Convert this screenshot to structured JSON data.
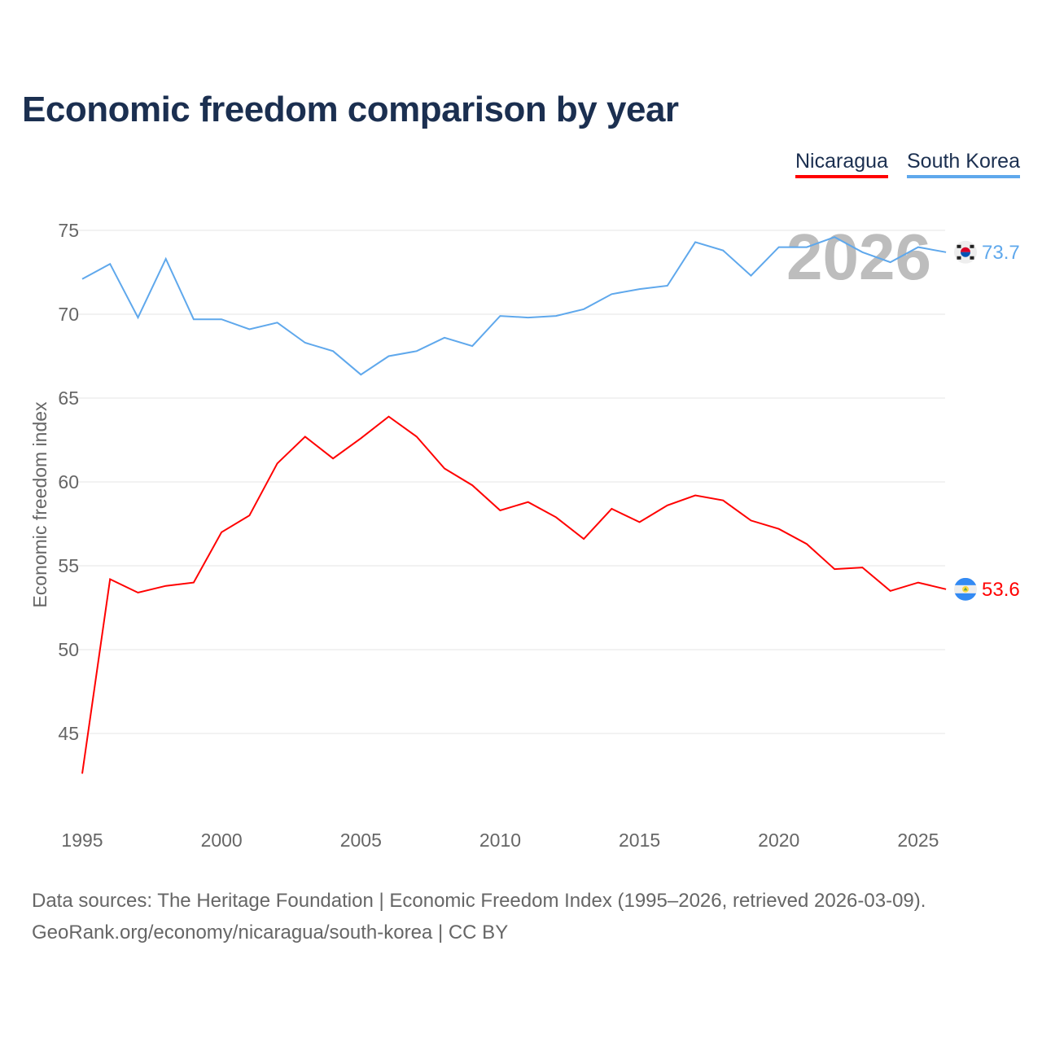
{
  "chart_data": {
    "type": "line",
    "title": "Economic freedom comparison by year",
    "xlabel": "",
    "ylabel": "Economic freedom index",
    "x": [
      1995,
      1996,
      1997,
      1998,
      1999,
      2000,
      2001,
      2002,
      2003,
      2004,
      2005,
      2006,
      2007,
      2008,
      2009,
      2010,
      2011,
      2012,
      2013,
      2014,
      2015,
      2016,
      2017,
      2018,
      2019,
      2020,
      2021,
      2022,
      2023,
      2024,
      2025,
      2026
    ],
    "xlim": [
      1995,
      2026
    ],
    "ylim": [
      40.5,
      76
    ],
    "xticks": [
      "1995",
      "2000",
      "2005",
      "2010",
      "2015",
      "2020",
      "2025"
    ],
    "yticks": [
      "45",
      "50",
      "55",
      "60",
      "65",
      "70",
      "75"
    ],
    "grid": true,
    "legend_position": "top-right",
    "watermark_year": "2026",
    "series": [
      {
        "name": "Nicaragua",
        "color": "#ff0000",
        "end_label": "53.6",
        "flag": "nicaragua-flag",
        "values": [
          42.6,
          54.2,
          53.4,
          53.8,
          54.0,
          57.0,
          58.0,
          61.1,
          62.7,
          61.4,
          62.6,
          63.9,
          62.7,
          60.8,
          59.8,
          58.3,
          58.8,
          57.9,
          56.6,
          58.4,
          57.6,
          58.6,
          59.2,
          58.9,
          57.7,
          57.2,
          56.3,
          54.8,
          54.9,
          53.5,
          54.0,
          53.6
        ]
      },
      {
        "name": "South Korea",
        "color": "#5fa8ec",
        "end_label": "73.7",
        "flag": "south-korea-flag",
        "values": [
          72.1,
          73.0,
          69.8,
          73.3,
          69.7,
          69.7,
          69.1,
          69.5,
          68.3,
          67.8,
          66.4,
          67.5,
          67.8,
          68.6,
          68.1,
          69.9,
          69.8,
          69.9,
          70.3,
          71.2,
          71.5,
          71.7,
          74.3,
          73.8,
          72.3,
          74.0,
          74.0,
          74.6,
          73.7,
          73.1,
          74.0,
          73.7
        ]
      }
    ]
  },
  "footer": {
    "line1": "Data sources: The Heritage Foundation | Economic Freedom Index (1995–2026, retrieved 2026-03-09).",
    "line2": "GeoRank.org/economy/nicaragua/south-korea | CC BY"
  }
}
